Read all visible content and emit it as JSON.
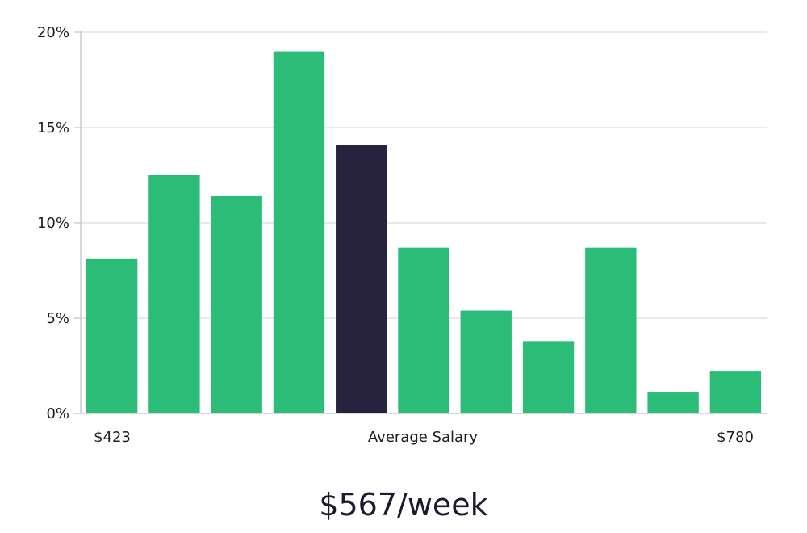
{
  "chart_data": {
    "type": "bar",
    "y_unit": "%",
    "ylim": [
      0,
      20
    ],
    "yticks": [
      "0%",
      "5%",
      "10%",
      "15%",
      "20%"
    ],
    "grid": true,
    "values": [
      8.1,
      12.5,
      11.4,
      19.0,
      14.1,
      8.7,
      5.4,
      3.8,
      8.7,
      1.1,
      2.2
    ],
    "highlight_index": 4,
    "colors": {
      "bar": "#2bbd78",
      "highlight": "#27233f",
      "grid": "#e2e2e2",
      "axis": "#cccccc"
    },
    "x_labels": {
      "min": "$423",
      "center": "Average Salary",
      "max": "$780"
    }
  },
  "summary": {
    "value": "$567/week"
  }
}
